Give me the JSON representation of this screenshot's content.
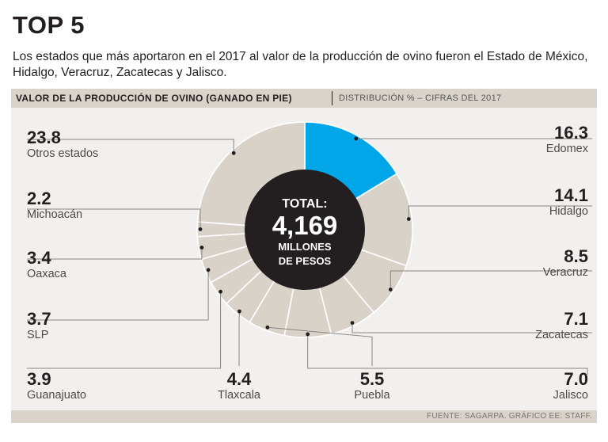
{
  "header": {
    "title": "TOP 5",
    "subtitle": "Los estados que más aportaron en el 2017 al valor de la producción de ovino fueron el Estado de México, Hidalgo, Veracruz, Zacatecas y Jalisco."
  },
  "chart_header": {
    "title": "VALOR DE LA PRODUCCIÓN DE OVINO (GANADO EN PIE)",
    "subtitle": "DISTRIBUCIÓN % – CIFRAS DEL 2017"
  },
  "center": {
    "line1": "TOTAL:",
    "line2": "4,169",
    "line3": "MILLONES",
    "line4": "DE PESOS"
  },
  "footer": {
    "source": "FUENTE: SAGARPA.  GRÁFICO EE: STAFF."
  },
  "colors": {
    "highlight": "#00a6e8",
    "slice": "#d8d2c9",
    "center": "#231f20",
    "panel": "#f2f0ee",
    "header": "#d9d3cb"
  },
  "chart_data": {
    "type": "pie",
    "variant": "donut",
    "title": "VALOR DE LA PRODUCCIÓN DE OVINO (GANADO EN PIE)",
    "unit": "%",
    "highlight": "Edomex",
    "slices": [
      {
        "label": "Edomex",
        "value": 16.3,
        "display": "16.3"
      },
      {
        "label": "Hidalgo",
        "value": 14.1,
        "display": "14.1"
      },
      {
        "label": "Veracruz",
        "value": 8.5,
        "display": "8.5"
      },
      {
        "label": "Zacatecas",
        "value": 7.1,
        "display": "7.1"
      },
      {
        "label": "Jalisco",
        "value": 7.0,
        "display": "7.0"
      },
      {
        "label": "Puebla",
        "value": 5.5,
        "display": "5.5"
      },
      {
        "label": "Tlaxcala",
        "value": 4.4,
        "display": "4.4"
      },
      {
        "label": "Guanajuato",
        "value": 3.9,
        "display": "3.9"
      },
      {
        "label": "SLP",
        "value": 3.7,
        "display": "3.7"
      },
      {
        "label": "Oaxaca",
        "value": 3.4,
        "display": "3.4"
      },
      {
        "label": "Michoacán",
        "value": 2.2,
        "display": "2.2"
      },
      {
        "label": "Otros estados",
        "value": 23.8,
        "display": "23.8"
      }
    ]
  }
}
